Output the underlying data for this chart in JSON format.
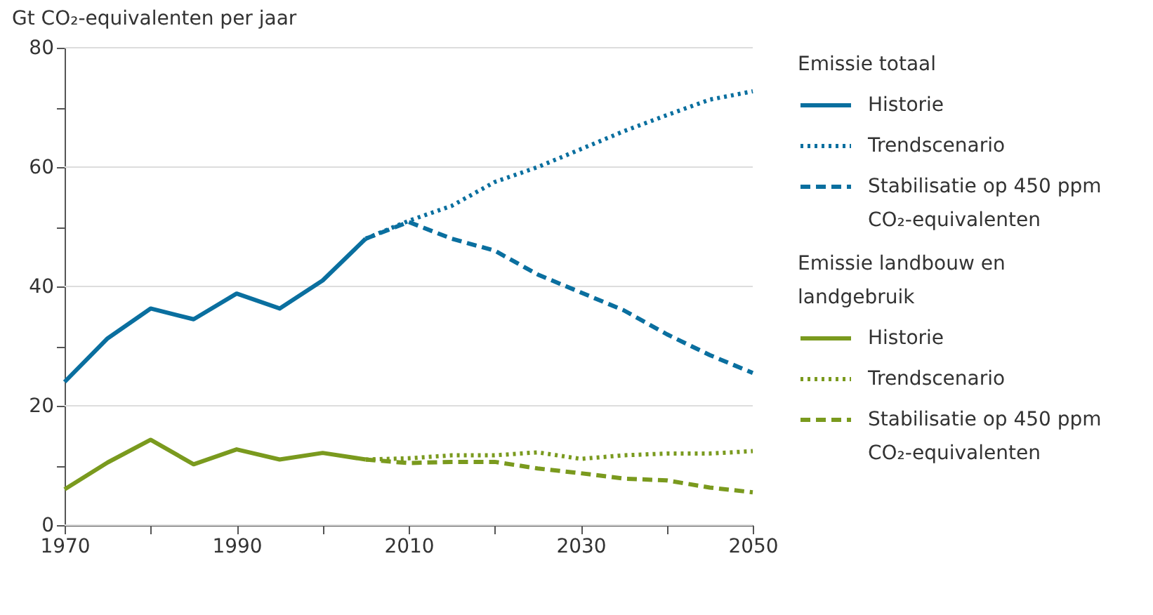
{
  "chart_data": {
    "type": "line",
    "ylabel": "Gt CO₂-equivalenten per jaar",
    "legend_title": [
      "Emissie totaal",
      "Emissie landbouw en landgebruik"
    ],
    "xlim": [
      1970,
      2050
    ],
    "xticks": [
      1970,
      {
        "value": 1980,
        "label": null
      },
      1990,
      {
        "value": 2000,
        "label": null
      },
      2010,
      {
        "value": 2020,
        "label": null
      },
      2030,
      {
        "value": 2040,
        "label": null
      },
      2050
    ],
    "ylim": [
      0,
      80
    ],
    "yticks": [
      0,
      {
        "value": 10,
        "label": null
      },
      20,
      {
        "value": 30,
        "label": null
      },
      40,
      {
        "value": 50,
        "label": null
      },
      60,
      {
        "value": 70,
        "label": null
      },
      80
    ],
    "grid": "y",
    "legend": "right",
    "marker": "none",
    "series": [
      {
        "name": "Historie",
        "color": "#0a6f9f",
        "line_style": "solid",
        "x": [
          1970,
          1975,
          1980,
          1985,
          1990,
          1995,
          2000,
          2005
        ],
        "values": [
          24,
          31.3,
          36.3,
          34.5,
          38.8,
          36.3,
          41,
          48
        ]
      },
      {
        "name": "Trendscenario",
        "color": "#0a6f9f",
        "line_style": "dotted",
        "x": [
          2005,
          2010,
          2015,
          2020,
          2025,
          2030,
          2035,
          2040,
          2045,
          2050
        ],
        "values": [
          48,
          51,
          53.5,
          57.5,
          60,
          63,
          66,
          68.7,
          71.3,
          72.7
        ]
      },
      {
        "name": "Stabilisatie op 450 ppm CO₂-equivalenten",
        "color": "#0a6f9f",
        "line_style": "dashed",
        "x": [
          2005,
          2010,
          2015,
          2020,
          2025,
          2030,
          2035,
          2040,
          2045,
          2050
        ],
        "values": [
          48,
          50.8,
          48,
          46,
          42,
          39,
          36,
          32,
          28.5,
          25.5
        ]
      },
      {
        "name": "Historie",
        "color": "#7a9a1e",
        "line_style": "solid",
        "x": [
          1970,
          1975,
          1980,
          1985,
          1990,
          1995,
          2000,
          2005
        ],
        "values": [
          6,
          10.5,
          14.3,
          10.2,
          12.7,
          11,
          12.1,
          11
        ]
      },
      {
        "name": "Trendscenario",
        "color": "#7a9a1e",
        "line_style": "dotted",
        "x": [
          2005,
          2010,
          2015,
          2020,
          2025,
          2030,
          2035,
          2040,
          2045,
          2050
        ],
        "values": [
          11,
          11.2,
          11.7,
          11.7,
          12.2,
          11.1,
          11.7,
          12,
          12,
          12.4
        ]
      },
      {
        "name": "Stabilisatie op 450 ppm CO₂-equivalenten",
        "color": "#7a9a1e",
        "line_style": "dashed",
        "x": [
          2005,
          2010,
          2015,
          2020,
          2025,
          2030,
          2035,
          2040,
          2045,
          2050
        ],
        "values": [
          11,
          10.4,
          10.6,
          10.6,
          9.5,
          8.7,
          7.8,
          7.5,
          6.3,
          5.5
        ]
      }
    ]
  }
}
